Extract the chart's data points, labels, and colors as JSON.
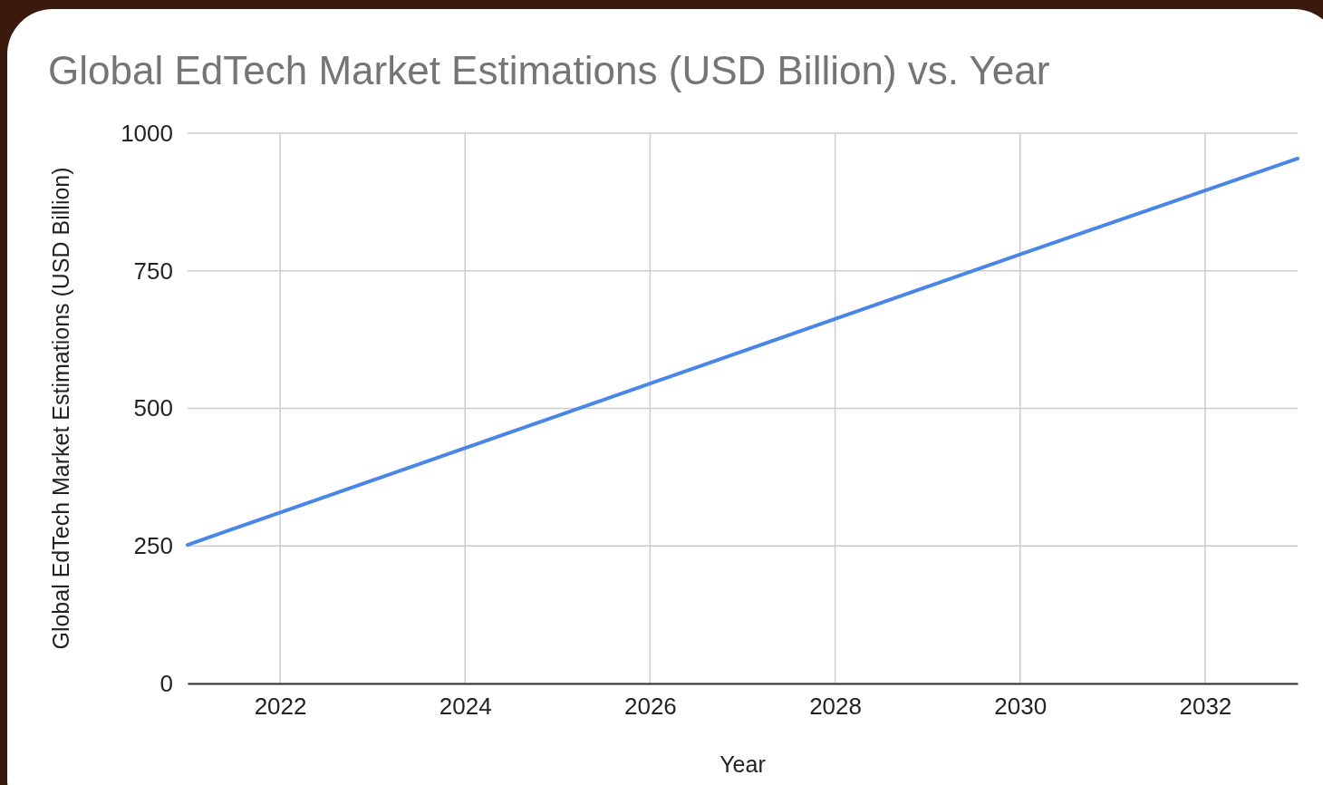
{
  "chart_data": {
    "type": "line",
    "title": "Global EdTech Market Estimations (USD Billion) vs. Year",
    "xlabel": "Year",
    "ylabel": "Global EdTech Market Estimations (USD Billion)",
    "x": [
      2021,
      2026,
      2030,
      2033
    ],
    "series": [
      {
        "color": "#4a86e8",
        "values": [
          252,
          545,
          780,
          954
        ]
      }
    ],
    "xlim": [
      2021,
      2033
    ],
    "xticks": [
      2022,
      2024,
      2026,
      2028,
      2030,
      2032
    ],
    "ylim": [
      0,
      1000
    ],
    "yticks": [
      0,
      250,
      500,
      750,
      1000
    ],
    "grid": true,
    "marker": "none",
    "line_style": "solid"
  }
}
